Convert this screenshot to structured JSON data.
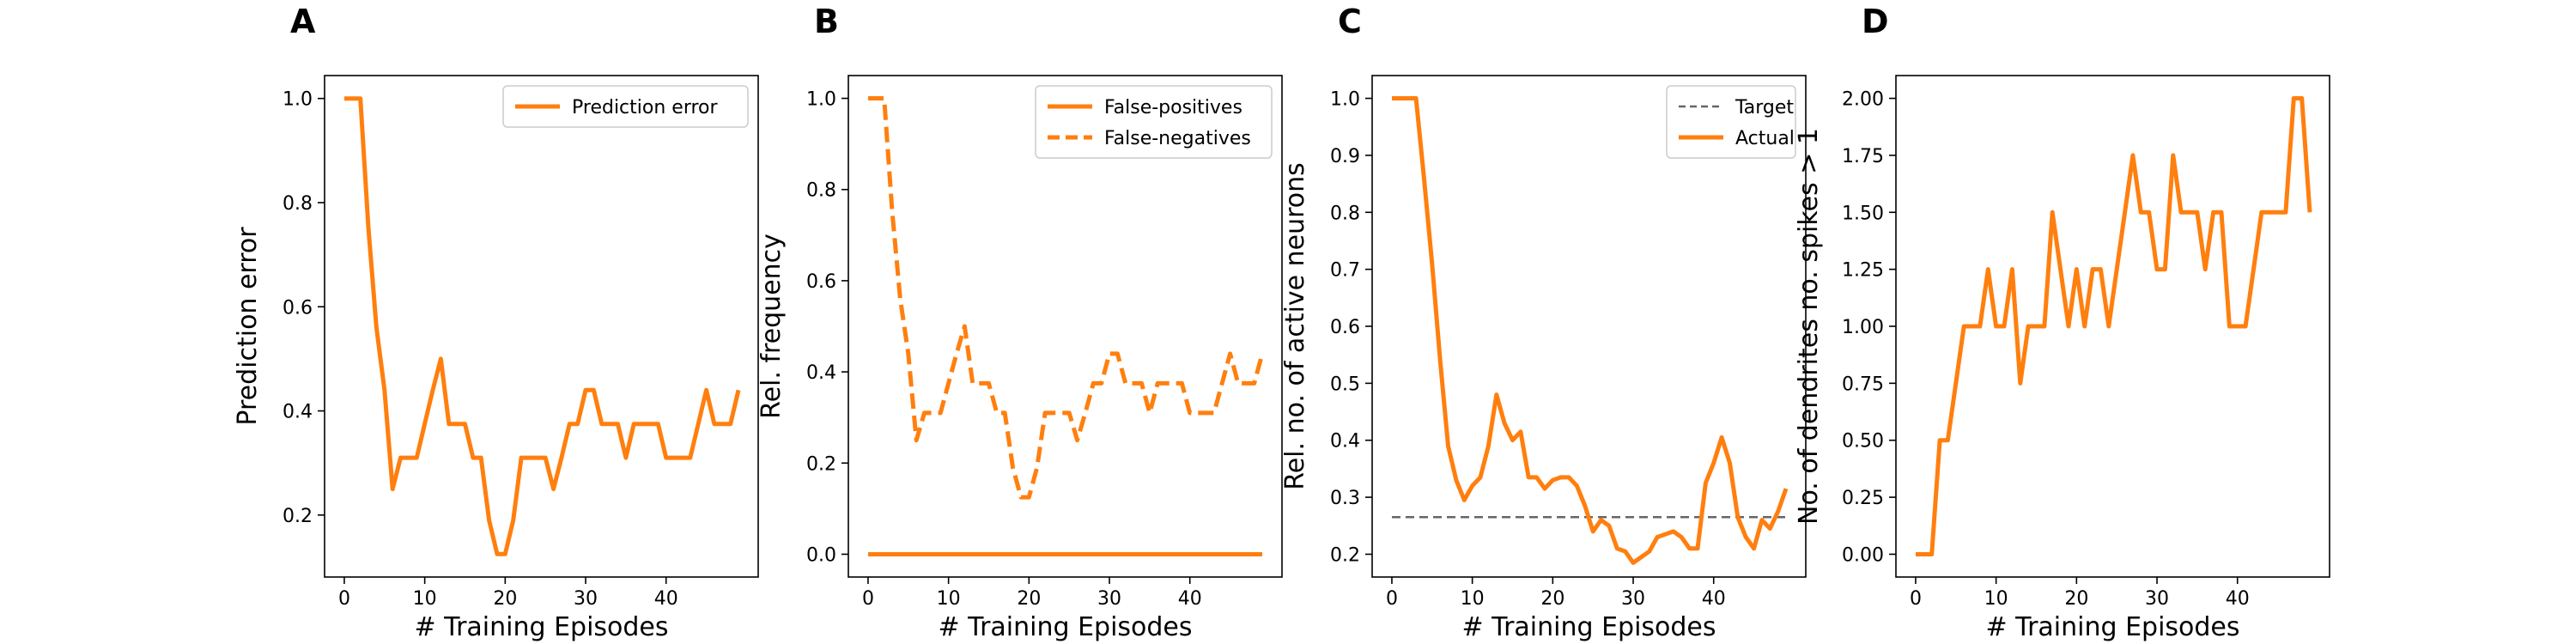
{
  "colors": {
    "orange": "#ff7f0e",
    "target_gray": "#666666",
    "axis": "#000000",
    "legend_frame": "#cccccc"
  },
  "chart_data": [
    {
      "panel": "A",
      "type": "line",
      "xlabel": "# Training Episodes",
      "ylabel": "Prediction error",
      "xlim": [
        -2.45,
        51.45
      ],
      "ylim": [
        0.081,
        1.044
      ],
      "xticks": [
        0,
        10,
        20,
        30,
        40
      ],
      "yticks": [
        0.2,
        0.4,
        0.6,
        0.8,
        1.0
      ],
      "ytick_labels": [
        "0.2",
        "0.4",
        "0.6",
        "0.8",
        "1.0"
      ],
      "grid": false,
      "legend": "top-right",
      "series": [
        {
          "name": "Prediction error",
          "style": "solid",
          "x": [
            0,
            1,
            2,
            3,
            4,
            5,
            6,
            7,
            8,
            9,
            10,
            11,
            12,
            13,
            14,
            15,
            16,
            17,
            18,
            19,
            20,
            21,
            22,
            23,
            24,
            25,
            26,
            27,
            28,
            29,
            30,
            31,
            32,
            33,
            34,
            35,
            36,
            37,
            38,
            39,
            40,
            41,
            42,
            43,
            44,
            45,
            46,
            47,
            48,
            49
          ],
          "y": [
            1.0,
            1.0,
            1.0,
            0.75,
            0.56,
            0.44,
            0.25,
            0.31,
            0.31,
            0.31,
            0.375,
            0.44,
            0.5,
            0.375,
            0.375,
            0.375,
            0.31,
            0.31,
            0.19,
            0.125,
            0.125,
            0.19,
            0.31,
            0.31,
            0.31,
            0.31,
            0.25,
            0.31,
            0.375,
            0.375,
            0.44,
            0.44,
            0.375,
            0.375,
            0.375,
            0.31,
            0.375,
            0.375,
            0.375,
            0.375,
            0.31,
            0.31,
            0.31,
            0.31,
            0.375,
            0.44,
            0.375,
            0.375,
            0.375,
            0.44
          ]
        }
      ]
    },
    {
      "panel": "B",
      "type": "line",
      "xlabel": "# Training Episodes",
      "ylabel": "Rel. frequency",
      "xlim": [
        -2.45,
        51.45
      ],
      "ylim": [
        -0.05,
        1.05
      ],
      "xticks": [
        0,
        10,
        20,
        30,
        40
      ],
      "yticks": [
        0.0,
        0.2,
        0.4,
        0.6,
        0.8,
        1.0
      ],
      "ytick_labels": [
        "0.0",
        "0.2",
        "0.4",
        "0.6",
        "0.8",
        "1.0"
      ],
      "grid": false,
      "legend": "top-right",
      "series": [
        {
          "name": "False-positives",
          "style": "solid",
          "x": [
            0,
            1,
            2,
            3,
            4,
            5,
            6,
            7,
            8,
            9,
            10,
            11,
            12,
            13,
            14,
            15,
            16,
            17,
            18,
            19,
            20,
            21,
            22,
            23,
            24,
            25,
            26,
            27,
            28,
            29,
            30,
            31,
            32,
            33,
            34,
            35,
            36,
            37,
            38,
            39,
            40,
            41,
            42,
            43,
            44,
            45,
            46,
            47,
            48,
            49
          ],
          "y": [
            0,
            0,
            0,
            0,
            0,
            0,
            0,
            0,
            0,
            0,
            0,
            0,
            0,
            0,
            0,
            0,
            0,
            0,
            0,
            0,
            0,
            0,
            0,
            0,
            0,
            0,
            0,
            0,
            0,
            0,
            0,
            0,
            0,
            0,
            0,
            0,
            0,
            0,
            0,
            0,
            0,
            0,
            0,
            0,
            0,
            0,
            0,
            0,
            0,
            0
          ]
        },
        {
          "name": "False-negatives",
          "style": "dashed",
          "x": [
            0,
            1,
            2,
            3,
            4,
            5,
            6,
            7,
            8,
            9,
            10,
            11,
            12,
            13,
            14,
            15,
            16,
            17,
            18,
            19,
            20,
            21,
            22,
            23,
            24,
            25,
            26,
            27,
            28,
            29,
            30,
            31,
            32,
            33,
            34,
            35,
            36,
            37,
            38,
            39,
            40,
            41,
            42,
            43,
            44,
            45,
            46,
            47,
            48,
            49
          ],
          "y": [
            1.0,
            1.0,
            1.0,
            0.75,
            0.56,
            0.44,
            0.25,
            0.31,
            0.31,
            0.31,
            0.375,
            0.44,
            0.5,
            0.375,
            0.375,
            0.375,
            0.31,
            0.31,
            0.19,
            0.125,
            0.125,
            0.19,
            0.31,
            0.31,
            0.31,
            0.31,
            0.25,
            0.31,
            0.375,
            0.375,
            0.44,
            0.44,
            0.375,
            0.375,
            0.375,
            0.31,
            0.375,
            0.375,
            0.375,
            0.375,
            0.31,
            0.31,
            0.31,
            0.31,
            0.375,
            0.44,
            0.375,
            0.375,
            0.375,
            0.44
          ]
        }
      ]
    },
    {
      "panel": "C",
      "type": "line",
      "xlabel": "# Training Episodes",
      "ylabel": "Rel. no. of active neurons",
      "xlim": [
        -2.45,
        51.45
      ],
      "ylim": [
        0.16,
        1.04
      ],
      "xticks": [
        0,
        10,
        20,
        30,
        40
      ],
      "yticks": [
        0.2,
        0.3,
        0.4,
        0.5,
        0.6,
        0.7,
        0.8,
        0.9,
        1.0
      ],
      "ytick_labels": [
        "0.2",
        "0.3",
        "0.4",
        "0.5",
        "0.6",
        "0.7",
        "0.8",
        "0.9",
        "1.0"
      ],
      "grid": false,
      "legend": "top-right",
      "series": [
        {
          "name": "Target",
          "style": "dashed",
          "x": [
            0,
            49
          ],
          "y": [
            0.265,
            0.265
          ]
        },
        {
          "name": "Actual",
          "style": "solid",
          "x": [
            0,
            1,
            2,
            3,
            4,
            5,
            6,
            7,
            8,
            9,
            10,
            11,
            12,
            13,
            14,
            15,
            16,
            17,
            18,
            19,
            20,
            21,
            22,
            23,
            24,
            25,
            26,
            27,
            28,
            29,
            30,
            31,
            32,
            33,
            34,
            35,
            36,
            37,
            38,
            39,
            40,
            41,
            42,
            43,
            44,
            45,
            46,
            47,
            48,
            49
          ],
          "y": [
            1.0,
            1.0,
            1.0,
            1.0,
            0.86,
            0.71,
            0.54,
            0.39,
            0.33,
            0.295,
            0.32,
            0.335,
            0.39,
            0.48,
            0.43,
            0.4,
            0.415,
            0.335,
            0.335,
            0.315,
            0.33,
            0.335,
            0.335,
            0.32,
            0.285,
            0.24,
            0.26,
            0.25,
            0.21,
            0.205,
            0.185,
            0.195,
            0.205,
            0.23,
            0.235,
            0.24,
            0.23,
            0.21,
            0.21,
            0.325,
            0.36,
            0.405,
            0.36,
            0.265,
            0.23,
            0.21,
            0.26,
            0.245,
            0.275,
            0.315
          ]
        }
      ]
    },
    {
      "panel": "D",
      "type": "line",
      "xlabel": "# Training Episodes",
      "ylabel": "No. of dendrites no. spikes > 1",
      "xlim": [
        -2.45,
        51.45
      ],
      "ylim": [
        -0.1,
        2.1
      ],
      "xticks": [
        0,
        10,
        20,
        30,
        40
      ],
      "yticks": [
        0.0,
        0.25,
        0.5,
        0.75,
        1.0,
        1.25,
        1.5,
        1.75,
        2.0
      ],
      "ytick_labels": [
        "0.00",
        "0.25",
        "0.50",
        "0.75",
        "1.00",
        "1.25",
        "1.50",
        "1.75",
        "2.00"
      ],
      "grid": false,
      "legend": "none",
      "series": [
        {
          "style": "solid",
          "x": [
            0,
            1,
            2,
            3,
            4,
            5,
            6,
            7,
            8,
            9,
            10,
            11,
            12,
            13,
            14,
            15,
            16,
            17,
            18,
            19,
            20,
            21,
            22,
            23,
            24,
            25,
            26,
            27,
            28,
            29,
            30,
            31,
            32,
            33,
            34,
            35,
            36,
            37,
            38,
            39,
            40,
            41,
            42,
            43,
            44,
            45,
            46,
            47,
            48,
            49
          ],
          "y": [
            0,
            0,
            0,
            0.5,
            0.5,
            0.75,
            1.0,
            1.0,
            1.0,
            1.25,
            1.0,
            1.0,
            1.25,
            0.75,
            1.0,
            1.0,
            1.0,
            1.5,
            1.25,
            1.0,
            1.25,
            1.0,
            1.25,
            1.25,
            1.0,
            1.25,
            1.5,
            1.75,
            1.5,
            1.5,
            1.25,
            1.25,
            1.75,
            1.5,
            1.5,
            1.5,
            1.25,
            1.5,
            1.5,
            1.0,
            1.0,
            1.0,
            1.25,
            1.5,
            1.5,
            1.5,
            1.5,
            2.0,
            2.0,
            1.5
          ]
        }
      ]
    }
  ]
}
